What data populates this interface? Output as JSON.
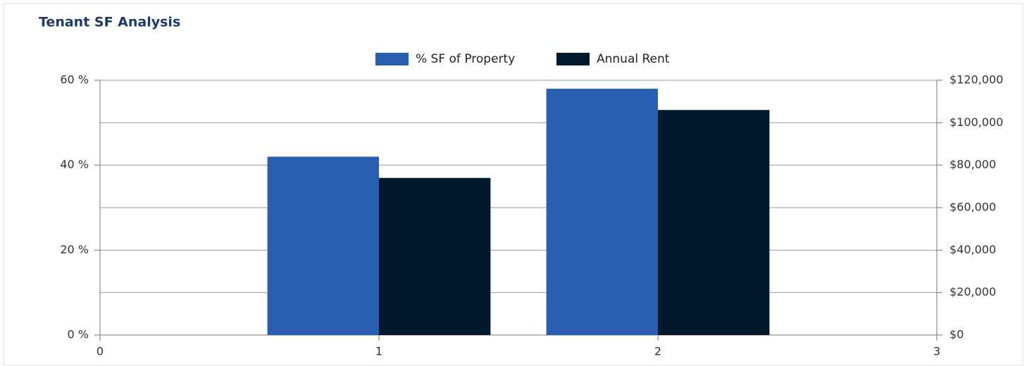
{
  "chart_data": {
    "type": "bar",
    "title": "Tenant SF Analysis",
    "x": [
      1,
      2
    ],
    "xlim": [
      0,
      3
    ],
    "xticks": [
      0,
      1,
      2,
      3
    ],
    "ylim": [
      0,
      60
    ],
    "yticks": [
      {
        "value": 0,
        "label": "0 %"
      },
      {
        "value": 20,
        "label": "20 %"
      },
      {
        "value": 40,
        "label": "40 %"
      },
      {
        "value": 60,
        "label": "60 %"
      }
    ],
    "y2lim": [
      0,
      120000
    ],
    "y2ticks": [
      {
        "value": 0,
        "label": "$0"
      },
      {
        "value": 20000,
        "label": "$20,000"
      },
      {
        "value": 40000,
        "label": "$40,000"
      },
      {
        "value": 60000,
        "label": "$60,000"
      },
      {
        "value": 80000,
        "label": "$80,000"
      },
      {
        "value": 100000,
        "label": "$100,000"
      },
      {
        "value": 120000,
        "label": "$120,000"
      }
    ],
    "grid": true,
    "legend": "top",
    "series": [
      {
        "name": "% SF of Property",
        "color": "#2a5fb0",
        "values": [
          42,
          58
        ]
      },
      {
        "name": "Annual Rent",
        "color": "#02182b",
        "axis": "y2",
        "values": [
          74000,
          106000
        ]
      }
    ]
  }
}
